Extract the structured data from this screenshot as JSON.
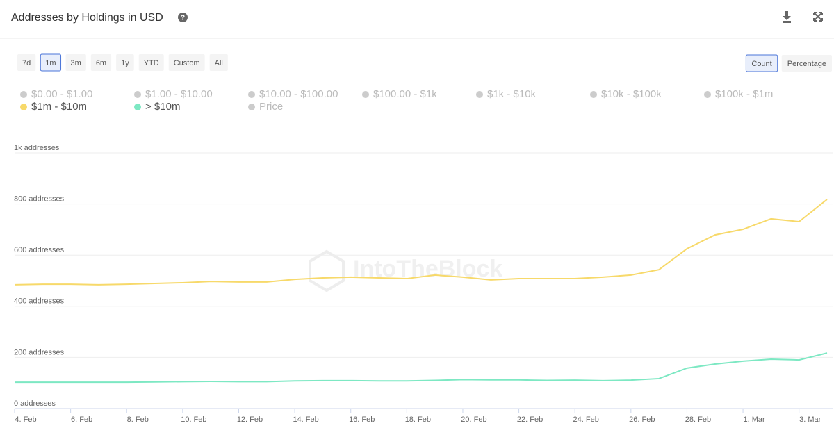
{
  "header": {
    "title": "Addresses by Holdings in USD"
  },
  "range_buttons": [
    "7d",
    "1m",
    "3m",
    "6m",
    "1y",
    "YTD",
    "Custom",
    "All"
  ],
  "active_range_index": 1,
  "view_buttons": [
    "Count",
    "Percentage"
  ],
  "active_view_index": 0,
  "chart_data": {
    "type": "line",
    "watermark": "IntoTheBlock",
    "categories": [
      "4. Feb",
      null,
      "6. Feb",
      null,
      "8. Feb",
      null,
      "10. Feb",
      null,
      "12. Feb",
      null,
      "14. Feb",
      null,
      "16. Feb",
      null,
      "18. Feb",
      null,
      "20. Feb",
      null,
      "22. Feb",
      null,
      "24. Feb",
      null,
      "26. Feb",
      null,
      "28. Feb",
      null,
      "1. Mar",
      null,
      "3. Mar",
      null
    ],
    "series": [
      {
        "name": "$0.00 - $1.00",
        "color": "#cccccc",
        "visible": false
      },
      {
        "name": "$1.00 - $10.00",
        "color": "#cccccc",
        "visible": false
      },
      {
        "name": "$10.00 - $100.00",
        "color": "#cccccc",
        "visible": false
      },
      {
        "name": "$100.00 - $1k",
        "color": "#cccccc",
        "visible": false
      },
      {
        "name": "$1k - $10k",
        "color": "#cccccc",
        "visible": false
      },
      {
        "name": "$10k - $100k",
        "color": "#cccccc",
        "visible": false
      },
      {
        "name": "$100k - $1m",
        "color": "#cccccc",
        "visible": false
      },
      {
        "name": "$1m - $10m",
        "color": "#f7d96a",
        "visible": true,
        "values": [
          484,
          486,
          486,
          484,
          486,
          489,
          492,
          497,
          495,
          495,
          505,
          511,
          514,
          511,
          508,
          522,
          514,
          503,
          508,
          508,
          508,
          514,
          522,
          543,
          625,
          679,
          701,
          742,
          731,
          818
        ]
      },
      {
        "name": "> $10m",
        "color": "#7de8c3",
        "visible": true,
        "values": [
          103,
          103,
          103,
          103,
          103,
          104,
          105,
          106,
          105,
          105,
          108,
          109,
          109,
          108,
          108,
          110,
          113,
          112,
          112,
          110,
          111,
          109,
          111,
          117,
          158,
          174,
          185,
          193,
          190,
          217
        ]
      },
      {
        "name": "Price",
        "color": "#cccccc",
        "visible": false
      }
    ],
    "ylim": [
      0,
      1000
    ],
    "yticks": [
      {
        "value": 0,
        "label": "0 addresses"
      },
      {
        "value": 200,
        "label": "200 addresses"
      },
      {
        "value": 400,
        "label": "400 addresses"
      },
      {
        "value": 600,
        "label": "600 addresses"
      },
      {
        "value": 800,
        "label": "800 addresses"
      },
      {
        "value": 1000,
        "label": "1k addresses"
      }
    ],
    "grid": true
  }
}
